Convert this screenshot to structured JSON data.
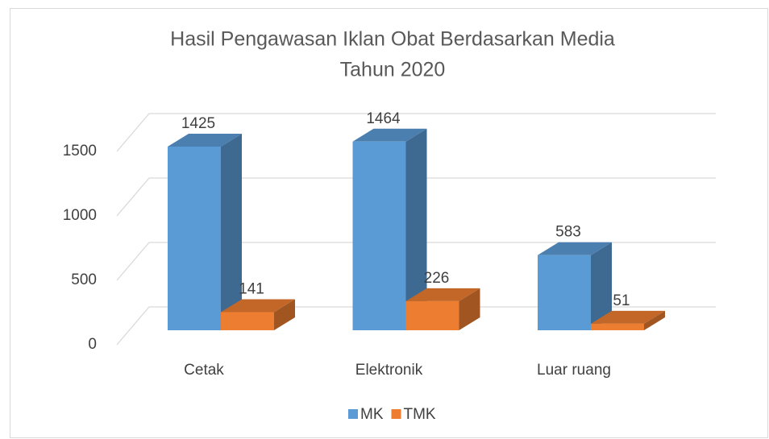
{
  "chart_data": {
    "type": "bar3d",
    "title": [
      "Hasil Pengawasan Iklan Obat Berdasarkan Media",
      "Tahun 2020"
    ],
    "categories": [
      "Cetak",
      "Elektronik",
      "Luar ruang"
    ],
    "series": [
      {
        "name": "MK",
        "color": "#5b9bd5",
        "values": [
          1425,
          1464,
          583
        ]
      },
      {
        "name": "TMK",
        "color": "#ed7d31",
        "values": [
          141,
          226,
          51
        ]
      }
    ],
    "ylim": [
      0,
      1500
    ],
    "yticks": [
      0,
      500,
      1000,
      1500
    ],
    "grid": true,
    "legend": "bottom"
  }
}
